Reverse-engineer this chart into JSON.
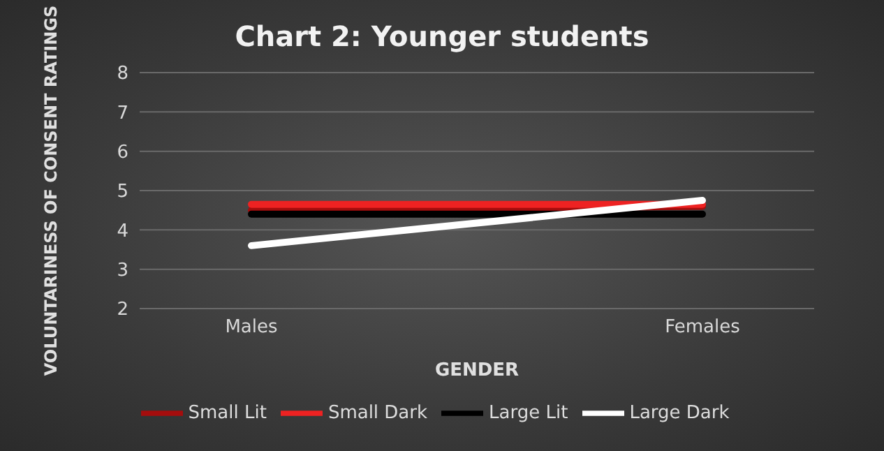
{
  "chart_data": {
    "type": "line",
    "title": "Chart 2: Younger students",
    "xlabel": "GENDER",
    "ylabel": "VOLUNTARINESS OF CONSENT RATINGS",
    "categories": [
      "Males",
      "Females"
    ],
    "series": [
      {
        "name": "Small Lit",
        "color": "#a50d0d",
        "values": [
          4.5,
          4.6
        ]
      },
      {
        "name": "Small Dark",
        "color": "#ee2222",
        "values": [
          4.65,
          4.65
        ]
      },
      {
        "name": "Large Lit",
        "color": "#000000",
        "values": [
          4.4,
          4.4
        ]
      },
      {
        "name": "Large Dark",
        "color": "#ffffff",
        "values": [
          3.6,
          4.75
        ]
      }
    ],
    "ylim": [
      2,
      8
    ],
    "yticks": [
      2,
      3,
      4,
      5,
      6,
      7,
      8
    ],
    "grid": "y",
    "legend": "bottom",
    "marker": "none",
    "line_style": "solid"
  }
}
